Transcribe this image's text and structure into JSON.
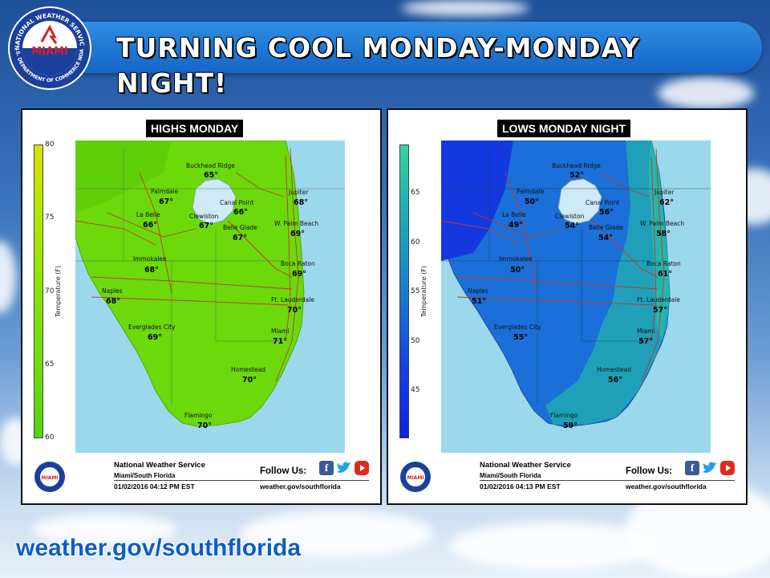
{
  "header": {
    "title": "TURNING COOL MONDAY-MONDAY NIGHT!"
  },
  "logo": {
    "center_text": "MIAMI",
    "ring_top": "NATIONAL WEATHER SERVICE",
    "ring_bottom": "U.S. DEPARTMENT OF COMMERCE NOAA"
  },
  "footer": {
    "website": "weather.gov/southflorida"
  },
  "colors": {
    "water": "#9bd8ec",
    "title_bar": "#1f78d6",
    "website_text": "#0e5cc7"
  },
  "panels": [
    {
      "title": "HIGHS MONDAY",
      "scale": {
        "label": "Temperature (F)",
        "ticks": [
          "80",
          "75",
          "70",
          "65",
          "60"
        ]
      },
      "cities": [
        {
          "name": "Buckhead Ridge",
          "temp": "65°"
        },
        {
          "name": "Palmdale",
          "temp": "67°"
        },
        {
          "name": "Canal Point",
          "temp": "66°"
        },
        {
          "name": "Jupiter",
          "temp": "68°"
        },
        {
          "name": "La Belle",
          "temp": "66°"
        },
        {
          "name": "Clewiston",
          "temp": "67°"
        },
        {
          "name": "Belle Glade",
          "temp": "67°"
        },
        {
          "name": "W. Palm Beach",
          "temp": "69°"
        },
        {
          "name": "Immokalee",
          "temp": "68°"
        },
        {
          "name": "Boca Raton",
          "temp": "69°"
        },
        {
          "name": "Naples",
          "temp": "68°"
        },
        {
          "name": "Ft. Lauderdale",
          "temp": "70°"
        },
        {
          "name": "Everglades City",
          "temp": "69°"
        },
        {
          "name": "Miami",
          "temp": "71°"
        },
        {
          "name": "Homestead",
          "temp": "70°"
        },
        {
          "name": "Flamingo",
          "temp": "70°"
        }
      ],
      "footer": {
        "org": "National Weather Service",
        "office": "Miami/South Florida",
        "timestamp": "01/02/2016 04:12 PM EST",
        "follow": "Follow Us:",
        "site": "weather.gov/southflorida"
      }
    },
    {
      "title": "LOWS MONDAY NIGHT",
      "scale": {
        "label": "Temperature (F)",
        "ticks": [
          "65",
          "60",
          "55",
          "50",
          "45"
        ]
      },
      "cities": [
        {
          "name": "Buckhead Ridge",
          "temp": "52°"
        },
        {
          "name": "Palmdale",
          "temp": "50°"
        },
        {
          "name": "Canal Point",
          "temp": "56°"
        },
        {
          "name": "Jupiter",
          "temp": "62°"
        },
        {
          "name": "La Belle",
          "temp": "49°"
        },
        {
          "name": "Clewiston",
          "temp": "54°"
        },
        {
          "name": "Belle Glade",
          "temp": "54°"
        },
        {
          "name": "W. Palm Beach",
          "temp": "58°"
        },
        {
          "name": "Immokalee",
          "temp": "50°"
        },
        {
          "name": "Boca Raton",
          "temp": "61°"
        },
        {
          "name": "Naples",
          "temp": "51°"
        },
        {
          "name": "Ft. Lauderdale",
          "temp": "57°"
        },
        {
          "name": "Everglades City",
          "temp": "55°"
        },
        {
          "name": "Miami",
          "temp": "57°"
        },
        {
          "name": "Homestead",
          "temp": "56°"
        },
        {
          "name": "Flamingo",
          "temp": "59°"
        }
      ],
      "footer": {
        "org": "National Weather Service",
        "office": "Miami/South Florida",
        "timestamp": "01/02/2016 04:13 PM EST",
        "follow": "Follow Us:",
        "site": "weather.gov/southflorida"
      }
    }
  ]
}
